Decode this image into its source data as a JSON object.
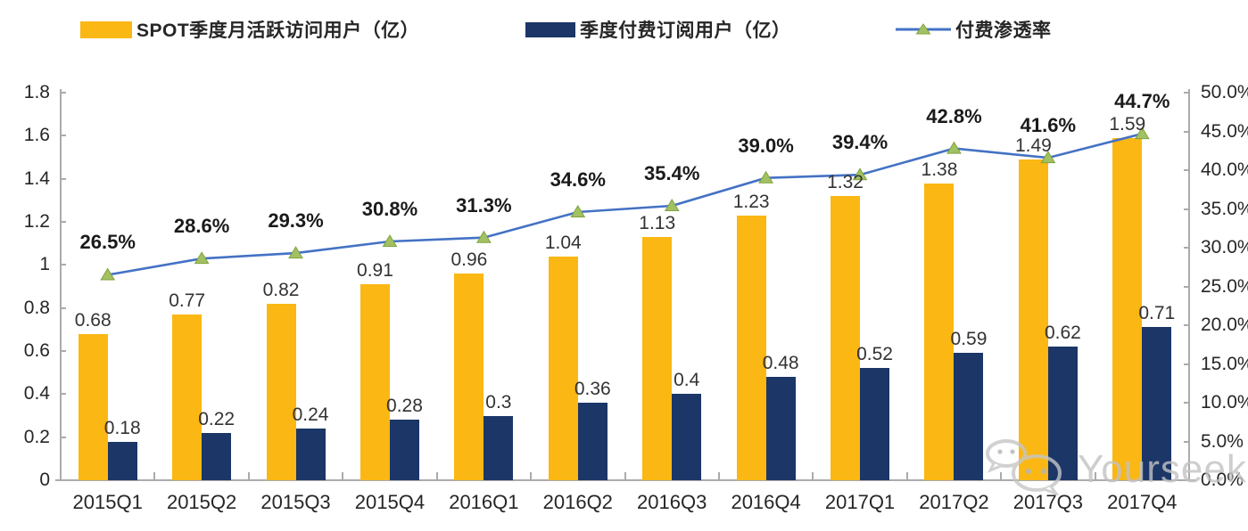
{
  "watermark": {
    "text": "Yourseeker"
  },
  "colors": {
    "mau_bar": "#FBB713",
    "sub_bar": "#1B3667",
    "line": "#4472C4",
    "marker_fill": "#A2C162",
    "marker_stroke": "#7FA33E",
    "axis": "#ABABAB",
    "text": "#262626"
  },
  "chart_data": {
    "type": "combo_bar_line",
    "title": "",
    "legend_position": "top",
    "grid": false,
    "categories": [
      "2015Q1",
      "2015Q2",
      "2015Q3",
      "2015Q4",
      "2016Q1",
      "2016Q2",
      "2016Q3",
      "2016Q4",
      "2017Q1",
      "2017Q2",
      "2017Q3",
      "2017Q4"
    ],
    "series": [
      {
        "name": "SPOT季度月活跃访问用户（亿）",
        "type": "bar",
        "axis": "left",
        "color": "#FBB713",
        "values": [
          0.68,
          0.77,
          0.82,
          0.91,
          0.96,
          1.04,
          1.13,
          1.23,
          1.32,
          1.38,
          1.49,
          1.59
        ],
        "labels": [
          "0.68",
          "0.77",
          "0.82",
          "0.91",
          "0.96",
          "1.04",
          "1.13",
          "1.23",
          "1.32",
          "1.38",
          "1.49",
          "1.59"
        ]
      },
      {
        "name": "季度付费订阅用户（亿）",
        "type": "bar",
        "axis": "left",
        "color": "#1B3667",
        "values": [
          0.18,
          0.22,
          0.24,
          0.28,
          0.3,
          0.36,
          0.4,
          0.48,
          0.52,
          0.59,
          0.62,
          0.71
        ],
        "labels": [
          "0.18",
          "0.22",
          "0.24",
          "0.28",
          "0.3",
          "0.36",
          "0.4",
          "0.48",
          "0.52",
          "0.59",
          "0.62",
          "0.71"
        ]
      },
      {
        "name": "付费渗透率",
        "type": "line",
        "axis": "right",
        "color": "#4472C4",
        "marker": "triangle",
        "marker_color": "#A2C162",
        "values": [
          26.5,
          28.6,
          29.3,
          30.8,
          31.3,
          34.6,
          35.4,
          39.0,
          39.4,
          42.8,
          41.6,
          44.7
        ],
        "labels": [
          "26.5%",
          "28.6%",
          "29.3%",
          "30.8%",
          "31.3%",
          "34.6%",
          "35.4%",
          "39.0%",
          "39.4%",
          "42.8%",
          "41.6%",
          "44.7%"
        ]
      }
    ],
    "left_axis": {
      "min": 0,
      "max": 1.8,
      "step": 0.2,
      "ticks": [
        "0",
        "0.2",
        "0.4",
        "0.6",
        "0.8",
        "1",
        "1.2",
        "1.4",
        "1.6",
        "1.8"
      ]
    },
    "right_axis": {
      "min": 0,
      "max": 50,
      "step": 5,
      "ticks": [
        "0.0%",
        "5.0%",
        "10.0%",
        "15.0%",
        "20.0%",
        "25.0%",
        "30.0%",
        "35.0%",
        "40.0%",
        "45.0%",
        "50.0%"
      ]
    }
  }
}
